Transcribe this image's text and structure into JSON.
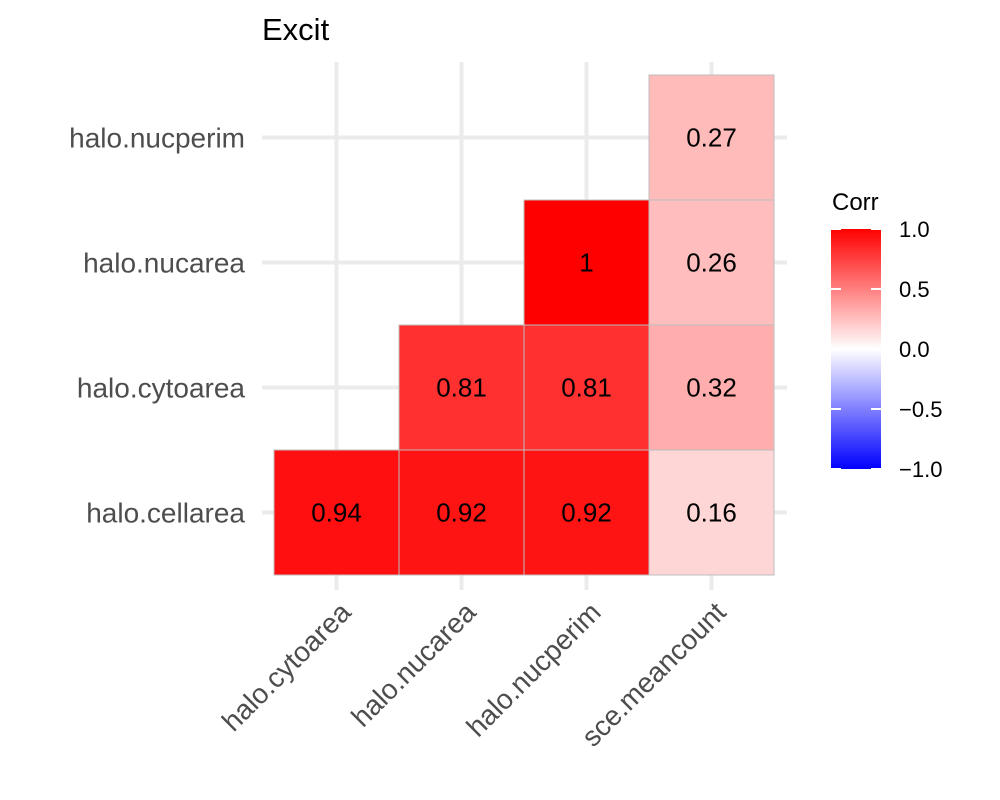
{
  "chart_data": {
    "type": "heatmap",
    "title": "Excit",
    "xlabel": "",
    "ylabel": "",
    "x_categories": [
      "halo.cytoarea",
      "halo.nucarea",
      "halo.nucperim",
      "sce.meancount"
    ],
    "y_categories": [
      "halo.cellarea",
      "halo.cytoarea",
      "halo.nucarea",
      "halo.nucperim"
    ],
    "cells": [
      {
        "x": "halo.cytoarea",
        "y": "halo.cellarea",
        "value": 0.94,
        "label": "0.94"
      },
      {
        "x": "halo.nucarea",
        "y": "halo.cellarea",
        "value": 0.92,
        "label": "0.92"
      },
      {
        "x": "halo.nucperim",
        "y": "halo.cellarea",
        "value": 0.92,
        "label": "0.92"
      },
      {
        "x": "sce.meancount",
        "y": "halo.cellarea",
        "value": 0.16,
        "label": "0.16"
      },
      {
        "x": "halo.nucarea",
        "y": "halo.cytoarea",
        "value": 0.81,
        "label": "0.81"
      },
      {
        "x": "halo.nucperim",
        "y": "halo.cytoarea",
        "value": 0.81,
        "label": "0.81"
      },
      {
        "x": "sce.meancount",
        "y": "halo.cytoarea",
        "value": 0.32,
        "label": "0.32"
      },
      {
        "x": "halo.nucperim",
        "y": "halo.nucarea",
        "value": 1.0,
        "label": "1"
      },
      {
        "x": "sce.meancount",
        "y": "halo.nucarea",
        "value": 0.26,
        "label": "0.26"
      },
      {
        "x": "sce.meancount",
        "y": "halo.nucperim",
        "value": 0.27,
        "label": "0.27"
      }
    ],
    "legend": {
      "title": "Corr",
      "position": "right",
      "range": [
        -1.0,
        1.0
      ],
      "ticks": [
        {
          "value": 1.0,
          "label": "1.0"
        },
        {
          "value": 0.5,
          "label": "0.5"
        },
        {
          "value": 0.0,
          "label": "0.0"
        },
        {
          "value": -0.5,
          "label": "−0.5"
        },
        {
          "value": -1.0,
          "label": "−1.0"
        }
      ]
    },
    "colors": {
      "low": "#0000ff",
      "mid": "#ffffff",
      "high": "#ff0000",
      "grid": "#ebebeb",
      "tile_border": "#bdbdbd"
    },
    "grid": true
  }
}
